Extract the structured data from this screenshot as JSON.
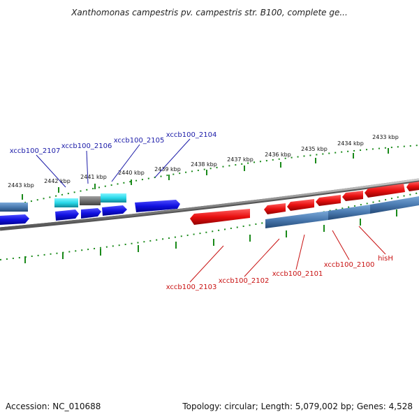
{
  "title": "Xanthomonas campestris pv. campestris str. B100, complete ge...",
  "footer": {
    "accession": "Accession: NC_010688",
    "topology": "Topology: circular; Length: 5,079,002 bp; Genes: 4,528"
  },
  "ticks": [
    "2443 kbp",
    "2442 kbp",
    "2441 kbp",
    "2440 kbp",
    "2439 kbp",
    "2438 kbp",
    "2437 kbp",
    "2436 kbp",
    "2435 kbp",
    "2434 kbp",
    "2433 kbp"
  ],
  "upper_labels": [
    "xccb100_2107",
    "xccb100_2106",
    "xccb100_2105",
    "xccb100_2104"
  ],
  "lower_labels": [
    "xccb100_2103",
    "xccb100_2102",
    "xccb100_2101",
    "xccb100_2100",
    "hisH"
  ],
  "colors": {
    "forward_gene": "#1010e0",
    "reverse_gene": "#e81010",
    "steel_gene": "#4a7ab0",
    "cyan_gene": "#28d8e8",
    "gray_gene": "#707070",
    "tick": "#1a8a1a",
    "backbone": "#888888",
    "label_blue": "#1a1aa8",
    "label_red": "#c81010"
  }
}
